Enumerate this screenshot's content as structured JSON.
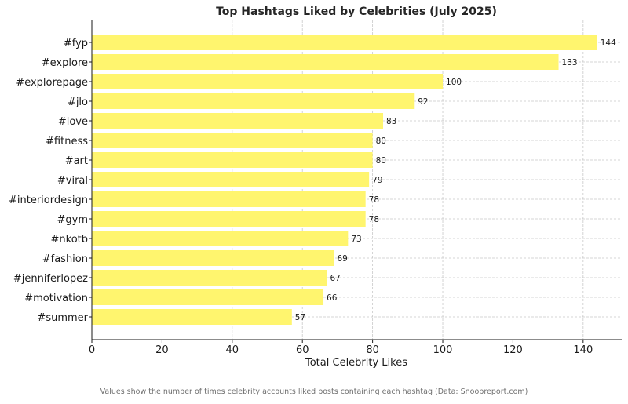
{
  "chart_data": {
    "type": "bar",
    "orientation": "horizontal",
    "title": "Top Hashtags Liked by Celebrities (July 2025)",
    "xlabel": "Total Celebrity Likes",
    "ylabel": "",
    "categories": [
      "#fyp",
      "#explore",
      "#explorepage",
      "#jlo",
      "#love",
      "#fitness",
      "#art",
      "#viral",
      "#interiordesign",
      "#gym",
      "#nkotb",
      "#fashion",
      "#jenniferlopez",
      "#motivation",
      "#summer"
    ],
    "values": [
      144,
      133,
      100,
      92,
      83,
      80,
      80,
      79,
      78,
      78,
      73,
      69,
      67,
      66,
      57
    ],
    "xlim": [
      0,
      151
    ],
    "xticks": [
      0,
      20,
      40,
      60,
      80,
      100,
      120,
      140
    ],
    "grid": true,
    "bar_color": "#fff56e",
    "data_labels": true
  },
  "caption": "Values show the number of times celebrity accounts liked posts containing each hashtag (Data: Snoopreport.com)"
}
